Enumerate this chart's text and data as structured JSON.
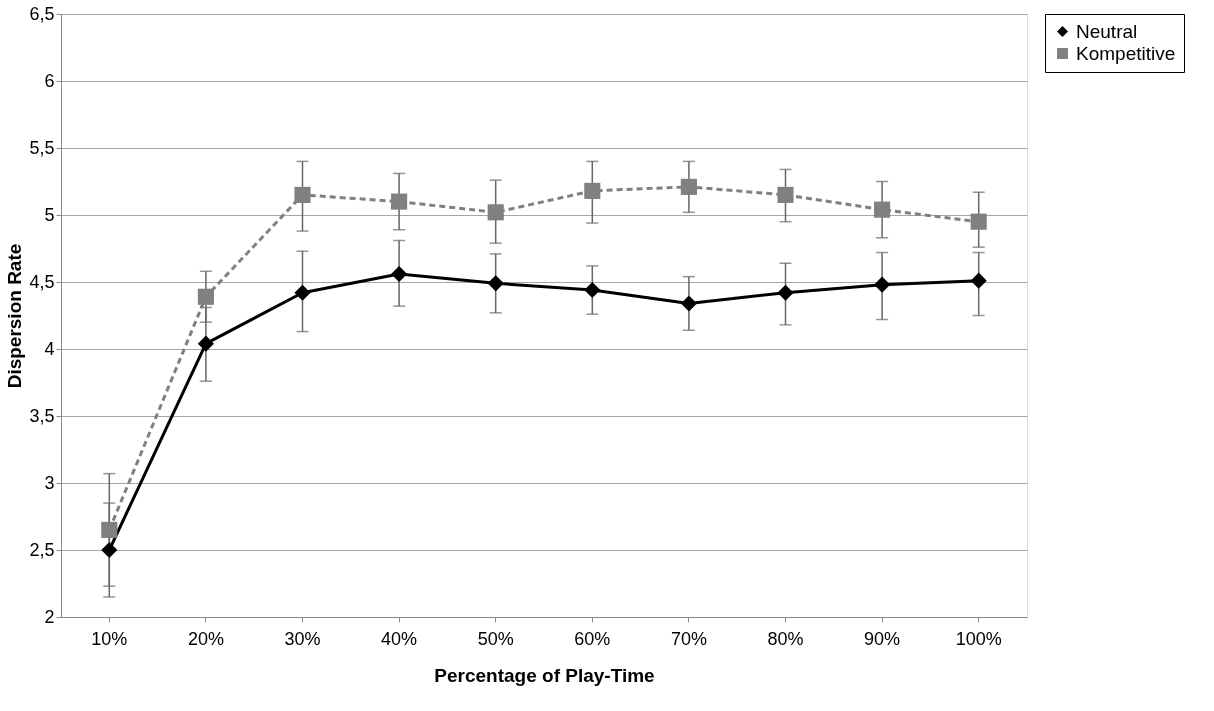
{
  "chart_data": {
    "type": "line",
    "xlabel": "Percentage of Play-Time",
    "ylabel": "Dispersion Rate",
    "categories": [
      "10%",
      "20%",
      "30%",
      "40%",
      "50%",
      "60%",
      "70%",
      "80%",
      "90%",
      "100%"
    ],
    "series": [
      {
        "name": "Neutral",
        "color": "#000000",
        "marker": "diamond",
        "line_style": "solid",
        "values": [
          2.5,
          4.04,
          4.42,
          4.56,
          4.49,
          4.44,
          4.34,
          4.42,
          4.48,
          4.51
        ],
        "errors": [
          [
            2.15,
            2.85
          ],
          [
            3.76,
            4.31
          ],
          [
            4.13,
            4.73
          ],
          [
            4.32,
            4.81
          ],
          [
            4.27,
            4.71
          ],
          [
            4.26,
            4.62
          ],
          [
            4.14,
            4.54
          ],
          [
            4.18,
            4.64
          ],
          [
            4.22,
            4.72
          ],
          [
            4.25,
            4.72
          ]
        ]
      },
      {
        "name": "Kompetitive",
        "color": "#808080",
        "marker": "square",
        "line_style": "dashed",
        "values": [
          2.65,
          4.39,
          5.15,
          5.1,
          5.02,
          5.18,
          5.21,
          5.15,
          5.04,
          4.95
        ],
        "errors": [
          [
            2.23,
            3.07
          ],
          [
            4.2,
            4.58
          ],
          [
            4.88,
            5.4
          ],
          [
            4.89,
            5.31
          ],
          [
            4.79,
            5.26
          ],
          [
            4.94,
            5.4
          ],
          [
            5.02,
            5.4
          ],
          [
            4.95,
            5.34
          ],
          [
            4.83,
            5.25
          ],
          [
            4.76,
            5.17
          ]
        ]
      }
    ],
    "ylim": [
      2,
      6.5
    ],
    "yticks": [
      2,
      {
        "value": 2.5,
        "label": "2,5"
      },
      3,
      {
        "value": 3.5,
        "label": "3,5"
      },
      4,
      {
        "value": 4.5,
        "label": "4,5"
      },
      5,
      {
        "value": 5.5,
        "label": "5,5"
      },
      6,
      {
        "value": 6.5,
        "label": "6,5"
      }
    ],
    "grid": "y",
    "legend": "top right"
  }
}
